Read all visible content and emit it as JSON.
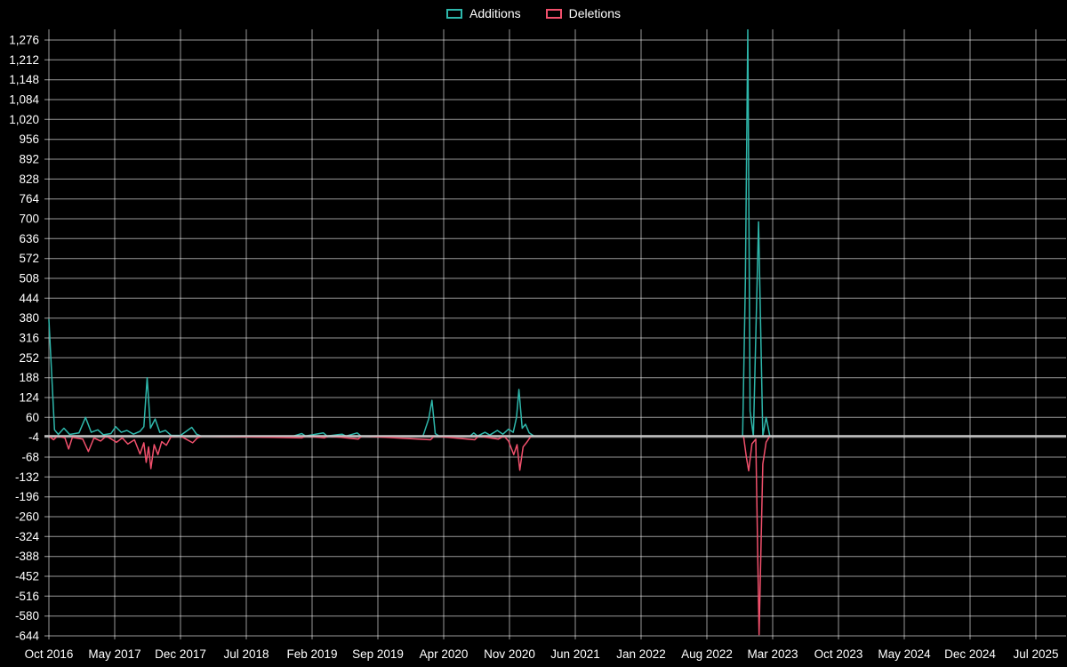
{
  "page": {
    "background": "#000000"
  },
  "legend": {
    "items": [
      {
        "label": "Additions",
        "color": "#2eb7ab"
      },
      {
        "label": "Deletions",
        "color": "#f1506c"
      }
    ]
  },
  "chart_data": {
    "type": "line",
    "title": "",
    "xlabel": "",
    "ylabel": "",
    "legend_position": "top",
    "grid": true,
    "background": "#000000",
    "grid_color": "rgba(255,255,255,0.6)",
    "axis_text_color": "#ffffff",
    "zero_line_color": "#c9c9c9",
    "x_unit": "months since Oct 2016",
    "xlim": [
      0,
      107
    ],
    "ylim": [
      -660,
      1310
    ],
    "x_tick_months": [
      0,
      7,
      14,
      21,
      28,
      35,
      42,
      49,
      56,
      63,
      70,
      77,
      84,
      91,
      98,
      105
    ],
    "x_tick_labels": [
      "Oct 2016",
      "May 2017",
      "Dec 2017",
      "Jul 2018",
      "Feb 2019",
      "Sep 2019",
      "Apr 2020",
      "Nov 2020",
      "Jun 2021",
      "Jan 2022",
      "Aug 2022",
      "Mar 2023",
      "Oct 2023",
      "May 2024",
      "Dec 2024",
      "Jul 2025"
    ],
    "y_ticks": [
      1276,
      1212,
      1148,
      1084,
      1020,
      956,
      892,
      828,
      764,
      700,
      636,
      572,
      508,
      444,
      380,
      316,
      252,
      188,
      124,
      60,
      -4,
      -68,
      -132,
      -196,
      -260,
      -324,
      -388,
      -452,
      -516,
      -580,
      -644
    ],
    "y_tick_labels": [
      "1,276",
      "1,212",
      "1,148",
      "1,084",
      "1,020",
      "956",
      "892",
      "828",
      "764",
      "700",
      "636",
      "572",
      "508",
      "444",
      "380",
      "316",
      "252",
      "188",
      "124",
      "60",
      "-4",
      "-68",
      "-132",
      "-196",
      "-260",
      "-324",
      "-388",
      "-452",
      "-516",
      "-580",
      "-644"
    ],
    "series": [
      {
        "name": "Additions",
        "color": "#2eb7ab",
        "points": [
          [
            0,
            375
          ],
          [
            0.6,
            20
          ],
          [
            1.0,
            5
          ],
          [
            1.6,
            25
          ],
          [
            2.2,
            5
          ],
          [
            3.2,
            10
          ],
          [
            3.9,
            60
          ],
          [
            4.5,
            12
          ],
          [
            5.2,
            20
          ],
          [
            5.8,
            4
          ],
          [
            6.6,
            8
          ],
          [
            7.1,
            30
          ],
          [
            7.7,
            12
          ],
          [
            8.3,
            18
          ],
          [
            9.0,
            6
          ],
          [
            9.7,
            15
          ],
          [
            10.1,
            30
          ],
          [
            10.45,
            188
          ],
          [
            10.8,
            25
          ],
          [
            11.3,
            55
          ],
          [
            11.8,
            12
          ],
          [
            12.4,
            18
          ],
          [
            13.0,
            2
          ],
          [
            14.0,
            2
          ],
          [
            15.2,
            28
          ],
          [
            15.7,
            6
          ],
          [
            16.2,
            0
          ],
          [
            26.0,
            0
          ],
          [
            26.9,
            8
          ],
          [
            27.3,
            0
          ],
          [
            29.2,
            10
          ],
          [
            29.6,
            0
          ],
          [
            31.2,
            6
          ],
          [
            31.6,
            0
          ],
          [
            32.8,
            10
          ],
          [
            33.2,
            0
          ],
          [
            39.8,
            0
          ],
          [
            40.4,
            55
          ],
          [
            40.75,
            115
          ],
          [
            41.1,
            8
          ],
          [
            41.5,
            0
          ],
          [
            44.8,
            0
          ],
          [
            45.2,
            10
          ],
          [
            45.6,
            0
          ],
          [
            46.4,
            12
          ],
          [
            46.9,
            3
          ],
          [
            47.7,
            18
          ],
          [
            48.3,
            6
          ],
          [
            48.9,
            22
          ],
          [
            49.4,
            12
          ],
          [
            49.75,
            60
          ],
          [
            50.0,
            150
          ],
          [
            50.35,
            25
          ],
          [
            50.7,
            38
          ],
          [
            51.1,
            10
          ],
          [
            51.6,
            0
          ],
          [
            73.8,
            0
          ],
          [
            74.1,
            500
          ],
          [
            74.35,
            1310
          ],
          [
            74.6,
            80
          ],
          [
            74.95,
            0
          ],
          [
            75.5,
            690
          ],
          [
            75.95,
            0
          ],
          [
            76.3,
            60
          ],
          [
            76.7,
            0
          ],
          [
            107,
            0
          ]
        ]
      },
      {
        "name": "Deletions",
        "color": "#f1506c",
        "points": [
          [
            0,
            0
          ],
          [
            0.5,
            -12
          ],
          [
            0.9,
            0
          ],
          [
            1.7,
            -6
          ],
          [
            2.1,
            -42
          ],
          [
            2.5,
            -4
          ],
          [
            3.6,
            -10
          ],
          [
            4.2,
            -50
          ],
          [
            4.8,
            -6
          ],
          [
            5.5,
            -16
          ],
          [
            6.1,
            0
          ],
          [
            7.2,
            -20
          ],
          [
            7.8,
            -6
          ],
          [
            8.4,
            -26
          ],
          [
            9.1,
            -12
          ],
          [
            9.7,
            -58
          ],
          [
            10.1,
            -22
          ],
          [
            10.35,
            -85
          ],
          [
            10.6,
            -35
          ],
          [
            10.85,
            -105
          ],
          [
            11.2,
            -28
          ],
          [
            11.6,
            -60
          ],
          [
            12.0,
            -18
          ],
          [
            12.5,
            -30
          ],
          [
            13.0,
            -2
          ],
          [
            14.0,
            0
          ],
          [
            15.3,
            -22
          ],
          [
            15.8,
            -6
          ],
          [
            16.3,
            0
          ],
          [
            26.9,
            -6
          ],
          [
            27.3,
            0
          ],
          [
            29.3,
            -6
          ],
          [
            29.7,
            0
          ],
          [
            32.9,
            -10
          ],
          [
            33.3,
            0
          ],
          [
            40.6,
            -12
          ],
          [
            41.0,
            0
          ],
          [
            45.3,
            -12
          ],
          [
            45.7,
            0
          ],
          [
            47.8,
            -10
          ],
          [
            48.4,
            0
          ],
          [
            48.9,
            -16
          ],
          [
            49.45,
            -60
          ],
          [
            49.8,
            -28
          ],
          [
            50.1,
            -110
          ],
          [
            50.45,
            -35
          ],
          [
            50.8,
            -22
          ],
          [
            51.3,
            0
          ],
          [
            73.9,
            0
          ],
          [
            74.2,
            -68
          ],
          [
            74.45,
            -112
          ],
          [
            74.8,
            -25
          ],
          [
            75.2,
            -10
          ],
          [
            75.55,
            -640
          ],
          [
            75.95,
            -90
          ],
          [
            76.3,
            -20
          ],
          [
            76.7,
            0
          ],
          [
            107,
            0
          ]
        ]
      }
    ]
  }
}
